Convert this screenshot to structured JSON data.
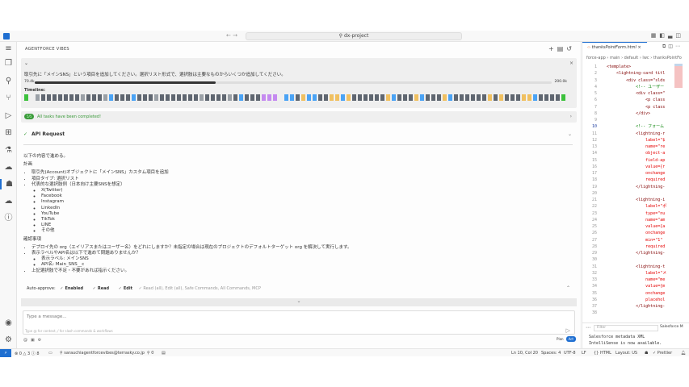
{
  "titlebar": {
    "search": "dx-project",
    "nav": "← →"
  },
  "panel": {
    "title": "AGENTFORCE VIBES",
    "task": {
      "text": "取引先に「メインSNS」という項目を追加してください。選択リスト形式で、選択肢は主要なものからいくつか追加してください。",
      "context_used": "70.4k",
      "context_max": "200.0k",
      "context_fraction": 0.35,
      "timeline_label": "Timeline:",
      "timeline": "g e l d d d d d d d l d d d l b d d d b d d d l d d d d d d d l d d d d l d b d d d p p p e b b d y b b d d y y b y d d d d d d y b d d d y b d d d y b d d d d d d y d y d d d y y b d d d d g"
    },
    "completed": {
      "badge": "5/5",
      "text": "All tasks have been completed!"
    },
    "api_request": "API Request",
    "intro": "以下の内容で進める。",
    "plan_heading": "計画",
    "plan": [
      "取引先(Account)オブジェクトに「メインSNS」カスタム項目を追加",
      "項目タイプ: 選択リスト",
      "代表的な選択肢例（日本向け主要SNSを想定）"
    ],
    "options": [
      "X(Twitter)",
      "Facebook",
      "Instagram",
      "LinkedIn",
      "YouTube",
      "TikTok",
      "LINE",
      "その他"
    ],
    "confirm_heading": "確認事項",
    "confirm": [
      "デプロイ先の org（エイリアスまたはユーザー名）をどれにしますか？未指定の場合は現在のプロジェクトのデフォルトターゲット org を解決して実行します。",
      "表示ラベルやAPI名は以下で進めて問題ありませんか？",
      "上記選択肢で不足・不要があれば指示ください。"
    ],
    "confirm_sub": [
      "表示ラベル: メインSNS",
      "API名: Main_SNS__c"
    ],
    "auto_approve": {
      "label": "Auto-approve:",
      "enabled": "Enabled",
      "read": "Read",
      "edit": "Edit",
      "summary": "✓ Read (all), Edit (all), Safe Commands, All Commands, MCP"
    },
    "input": {
      "placeholder": "Type a message...",
      "hint": "Type @ for context, / for slash commands & workflows"
    },
    "mode": {
      "plan": "Plan",
      "act": "Act"
    }
  },
  "editor": {
    "tab": "thanksPointForm.html",
    "breadcrumb": "force-app › main › default › lwc › thanksPointFo",
    "lines": [
      "<template>",
      "    <lightning-card titl",
      "        <div class=\"slds",
      "            <!-- ユーザー",
      "            <div class=\"",
      "                <p class",
      "                <p class",
      "            </div>",
      "",
      "            <!-- フォーム",
      "            <lightning-r",
      "                label=\"$",
      "                name=\"re",
      "                object-a",
      "                field-ap",
      "                value={r",
      "                onchange",
      "                required",
      "            </lightning-",
      "",
      "            <lightning-i",
      "                label=\"ポ",
      "                type=\"nu",
      "                name=\"am",
      "                value={a",
      "                onchange",
      "                min=\"1\"",
      "                required",
      "            </lightning-",
      "",
      "            <lightning-t",
      "                label=\"メ",
      "                name=\"me",
      "                value={m",
      "                onchange",
      "                placehol",
      "            </lightning-",
      ""
    ],
    "current_line": 10,
    "output": {
      "filter": "Filter",
      "channel": "Salesforce M",
      "lines": [
        "Salesforce metadata XML",
        "IntelliSense is now available."
      ]
    }
  },
  "status": {
    "problems": "⊗ 0 △ 3 ⓘ 8",
    "account": "sarauchiagentforcevibes@terrasky.co.jp",
    "ports": "⚲ 0",
    "position": "Ln 10, Col 20",
    "spaces": "Spaces: 4",
    "encoding": "UTF-8",
    "eol": "LF",
    "language": "{} HTML",
    "layout": "Layout: US",
    "prettier": "✓ Prettier"
  },
  "colors": {
    "accent": "#1f6fd1",
    "success": "#3a9a3a",
    "g": "#3cc13c",
    "l": "#9aa0a6",
    "d": "#5f6670",
    "b": "#4aa3f5",
    "p": "#c58af0",
    "y": "#f0c060"
  }
}
